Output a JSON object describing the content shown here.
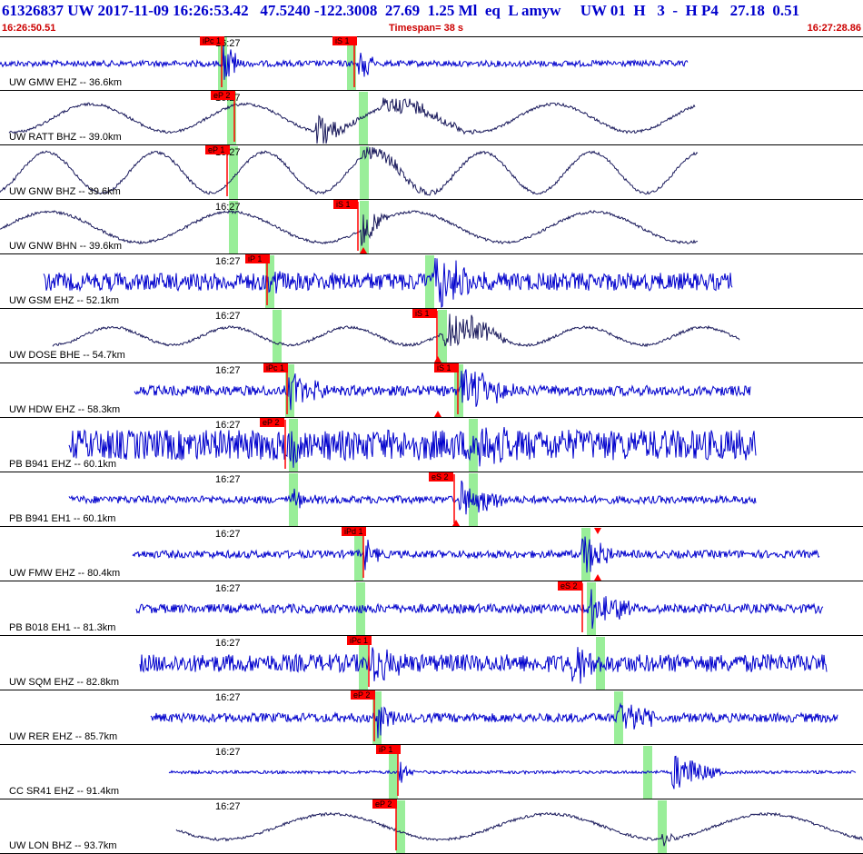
{
  "header": {
    "line1": "61326837 UW 2017-11-09 16:26:53.42   47.5240 -122.3008  27.69  1.25 Ml  eq  L amyw     UW 01  H   3  -  H P4   27.18  0.51",
    "start_time": "16:26:50.51",
    "timespan": "Timespan=  38 s",
    "end_time": "16:27:28.86"
  },
  "minute_label": "16:27",
  "colors": {
    "trace_blue": "#0000cc",
    "trace_navy": "#1a1a5c",
    "pick_red": "#ff0000",
    "window_green": "#99ee99",
    "header_text": "#0000cc",
    "header_times": "#cc0000"
  },
  "traces": [
    {
      "label": "UW GMW EHZ -- 36.6km",
      "color": "blue",
      "style": "noise",
      "amp": 0.12,
      "start": 0,
      "end": 757,
      "picks": [
        {
          "label": "iPc 1",
          "x": 220,
          "line_x": 244
        },
        {
          "label": "iS 1",
          "x": 366,
          "line_x": 390
        }
      ],
      "windows": [
        240,
        382
      ],
      "events": [
        {
          "x": 246,
          "amp": 0.9,
          "dur": 22
        },
        {
          "x": 393,
          "amp": 0.7,
          "dur": 25
        }
      ]
    },
    {
      "label": "UW RATT BHZ -- 39.0km",
      "color": "navy",
      "style": "wave",
      "amp": 0.55,
      "start": 10,
      "end": 765,
      "period": 170,
      "picks": [
        {
          "label": "eP 2",
          "x": 232,
          "line_x": 258
        }
      ],
      "windows": [
        250,
        395
      ],
      "events": [
        {
          "x": 348,
          "amp": 0.7,
          "dur": 50
        },
        {
          "x": 420,
          "amp": 0.4,
          "dur": 120
        }
      ]
    },
    {
      "label": "UW GNW BHZ -- 39.6km",
      "color": "navy",
      "style": "wave",
      "amp": 0.8,
      "start": 0,
      "end": 768,
      "period": 120,
      "picks": [
        {
          "label": "eP 1",
          "x": 226,
          "line_x": 250
        }
      ],
      "windows": [
        252,
        396
      ],
      "events": [
        {
          "x": 400,
          "amp": 0.3,
          "dur": 120
        }
      ]
    },
    {
      "label": "UW GNW BHN -- 39.6km",
      "color": "navy",
      "style": "wave",
      "amp": 0.6,
      "start": 0,
      "end": 768,
      "period": 200,
      "picks": [
        {
          "label": "iS 1",
          "x": 367,
          "line_x": 394
        }
      ],
      "windows": [
        252,
        396
      ],
      "events": [
        {
          "x": 398,
          "amp": 0.8,
          "dur": 30
        }
      ],
      "triangles": [
        {
          "x": 400,
          "dir": "up"
        }
      ]
    },
    {
      "label": "UW GSM EHZ -- 52.1km",
      "color": "blue",
      "style": "noise",
      "amp": 0.35,
      "start": 48,
      "end": 806,
      "picks": [
        {
          "label": "iP 1",
          "x": 270,
          "line_x": 294
        }
      ],
      "windows": [
        292,
        468
      ],
      "events": [
        {
          "x": 296,
          "amp": 0.6,
          "dur": 30
        },
        {
          "x": 478,
          "amp": 0.9,
          "dur": 60
        }
      ]
    },
    {
      "label": "UW DOSE BHE -- 54.7km",
      "color": "navy",
      "style": "wave",
      "amp": 0.35,
      "start": 58,
      "end": 814,
      "period": 130,
      "picks": [
        {
          "label": "iS 1",
          "x": 454,
          "line_x": 481
        }
      ],
      "windows": [
        300,
        482
      ],
      "events": [
        {
          "x": 488,
          "amp": 0.8,
          "dur": 80
        }
      ],
      "triangles": [
        {
          "x": 482,
          "dir": "up"
        }
      ]
    },
    {
      "label": "UW HDW EHZ -- 58.3km",
      "color": "blue",
      "style": "noise",
      "amp": 0.2,
      "start": 148,
      "end": 826,
      "picks": [
        {
          "label": "iPc 1",
          "x": 290,
          "line_x": 316
        },
        {
          "label": "iS 1",
          "x": 478,
          "line_x": 504
        }
      ],
      "windows": [
        314,
        500
      ],
      "events": [
        {
          "x": 318,
          "amp": 0.7,
          "dur": 50
        },
        {
          "x": 508,
          "amp": 0.95,
          "dur": 70
        }
      ],
      "triangles": [
        {
          "x": 482,
          "dir": "up"
        }
      ]
    },
    {
      "label": "PB B941 EHZ -- 60.1km",
      "color": "blue",
      "style": "noise",
      "amp": 0.6,
      "start": 76,
      "end": 832,
      "picks": [
        {
          "label": "eP 2",
          "x": 286,
          "line_x": 314
        }
      ],
      "windows": [
        318,
        516
      ],
      "events": [
        {
          "x": 320,
          "amp": 0.5,
          "dur": 40
        },
        {
          "x": 520,
          "amp": 0.6,
          "dur": 50
        }
      ]
    },
    {
      "label": "PB B941 EH1 -- 60.1km",
      "color": "blue",
      "style": "noise",
      "amp": 0.15,
      "start": 76,
      "end": 832,
      "picks": [
        {
          "label": "eS 2",
          "x": 472,
          "line_x": 500
        }
      ],
      "windows": [
        318,
        516
      ],
      "events": [
        {
          "x": 322,
          "amp": 0.4,
          "dur": 30
        },
        {
          "x": 506,
          "amp": 0.7,
          "dur": 60
        }
      ],
      "triangles": [
        {
          "x": 502,
          "dir": "up"
        }
      ]
    },
    {
      "label": "UW FMW EHZ -- 80.4km",
      "color": "blue",
      "style": "noise",
      "amp": 0.15,
      "start": 146,
      "end": 902,
      "picks": [
        {
          "label": "iPd 1",
          "x": 376,
          "line_x": 400
        }
      ],
      "windows": [
        390,
        640
      ],
      "events": [
        {
          "x": 402,
          "amp": 0.6,
          "dur": 20
        },
        {
          "x": 640,
          "amp": 0.9,
          "dur": 40
        }
      ],
      "triangles": [
        {
          "x": 658,
          "dir": "down"
        },
        {
          "x": 658,
          "dir": "up"
        }
      ]
    },
    {
      "label": "PB B018 EH1 -- 81.3km",
      "color": "blue",
      "style": "noise",
      "amp": 0.18,
      "start": 150,
      "end": 906,
      "picks": [
        {
          "label": "eS 2",
          "x": 614,
          "line_x": 641
        }
      ],
      "windows": [
        392,
        646
      ],
      "events": [
        {
          "x": 650,
          "amp": 0.9,
          "dur": 60
        }
      ]
    },
    {
      "label": "UW SQM EHZ -- 82.8km",
      "color": "blue",
      "style": "noise",
      "amp": 0.35,
      "start": 154,
      "end": 910,
      "picks": [
        {
          "label": "iPc 1",
          "x": 382,
          "line_x": 406
        }
      ],
      "windows": [
        395,
        656
      ],
      "events": [
        {
          "x": 410,
          "amp": 0.7,
          "dur": 40
        },
        {
          "x": 630,
          "amp": 0.9,
          "dur": 30
        }
      ]
    },
    {
      "label": "UW RER EHZ -- 85.7km",
      "color": "blue",
      "style": "noise",
      "amp": 0.18,
      "start": 166,
      "end": 922,
      "picks": [
        {
          "label": "eP 2",
          "x": 386,
          "line_x": 412
        }
      ],
      "windows": [
        410,
        676
      ],
      "events": [
        {
          "x": 416,
          "amp": 0.7,
          "dur": 30
        },
        {
          "x": 680,
          "amp": 0.8,
          "dur": 50
        }
      ]
    },
    {
      "label": "CC SR41 EHZ -- 91.4km",
      "color": "blue",
      "style": "noise",
      "amp": 0.06,
      "start": 186,
      "end": 942,
      "picks": [
        {
          "label": "iP 1",
          "x": 414,
          "line_x": 438
        }
      ],
      "windows": [
        428,
        708
      ],
      "events": [
        {
          "x": 440,
          "amp": 0.5,
          "dur": 20
        },
        {
          "x": 740,
          "amp": 0.8,
          "dur": 60
        }
      ]
    },
    {
      "label": "UW LON BHZ -- 93.7km",
      "color": "navy",
      "style": "wave",
      "amp": 0.5,
      "start": 194,
      "end": 950,
      "period": 240,
      "picks": [
        {
          "label": "eP 2",
          "x": 410,
          "line_x": 436
        }
      ],
      "windows": [
        436,
        724
      ],
      "events": [
        {
          "x": 728,
          "amp": 0.3,
          "dur": 20
        }
      ]
    }
  ]
}
